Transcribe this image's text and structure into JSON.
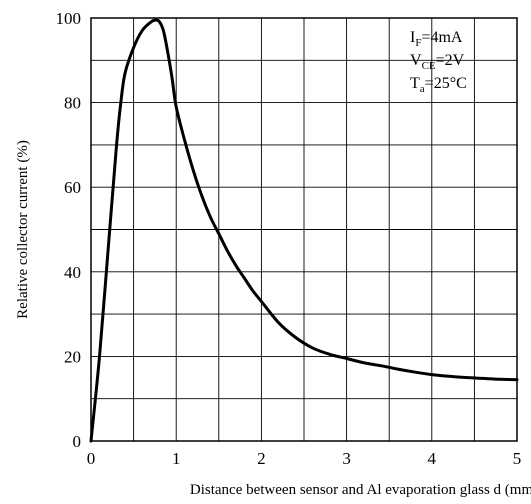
{
  "chart_data": {
    "type": "line",
    "title": "",
    "xlabel": "Distance between sensor and Al evaporation glass d (mm)",
    "ylabel": "Relative collector current (%)",
    "xlim": [
      0,
      5
    ],
    "ylim": [
      0,
      100
    ],
    "x_ticks": [
      0,
      1,
      2,
      3,
      4,
      5
    ],
    "y_ticks": [
      0,
      20,
      40,
      60,
      80,
      100
    ],
    "x_tick_labels": [
      "0",
      "1",
      "2",
      "3",
      "4",
      "5"
    ],
    "y_tick_labels": [
      "0",
      "20",
      "40",
      "60",
      "80",
      "100"
    ],
    "grid": {
      "x_step": 0.5,
      "y_step": 10,
      "on": true
    },
    "legend": "none",
    "annotations": [
      {
        "main": "I",
        "sub": "F",
        "rest": "=4mA"
      },
      {
        "main": "V",
        "sub": "CE",
        "rest": "=2V"
      },
      {
        "main": "T",
        "sub": "a",
        "rest": "=25°C"
      }
    ],
    "series": [
      {
        "x": [
          0,
          0.1,
          0.2,
          0.3,
          0.35,
          0.4,
          0.5,
          0.6,
          0.7,
          0.75,
          0.8,
          0.85,
          0.9,
          0.95,
          1.0,
          1.1,
          1.2,
          1.3,
          1.4,
          1.5,
          1.6,
          1.7,
          1.8,
          1.9,
          2.0,
          2.2,
          2.4,
          2.6,
          2.8,
          3.0,
          3.2,
          3.4,
          3.6,
          3.8,
          4.0,
          4.2,
          4.4,
          4.6,
          4.8,
          5.0
        ],
        "values": [
          0,
          20,
          45,
          70,
          80,
          87,
          93,
          97,
          99,
          99.5,
          99.2,
          97,
          92,
          86,
          79,
          71,
          64,
          58,
          53,
          49,
          45,
          41.5,
          38.5,
          35.5,
          33,
          28,
          24.5,
          22,
          20.5,
          19.5,
          18.5,
          17.8,
          17,
          16.3,
          15.7,
          15.3,
          15,
          14.8,
          14.6,
          14.5
        ]
      }
    ],
    "colors": {
      "line": "#000000",
      "grid": "#000000",
      "background": "#ffffff"
    }
  }
}
